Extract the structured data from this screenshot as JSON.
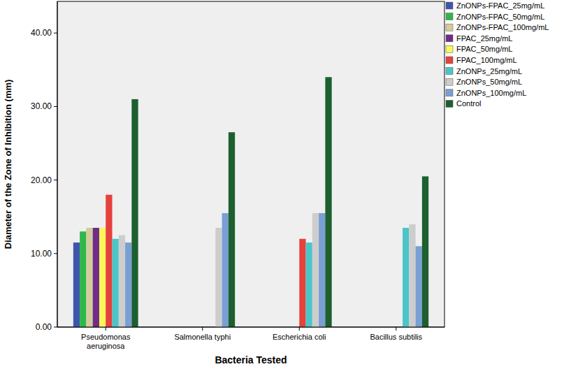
{
  "chart_data": {
    "type": "bar",
    "x_label": "Bacteria Tested",
    "y_label": "Diameter of the Zone of Inhibition (mm)",
    "categories": [
      "Pseudomonas aeruginosa",
      "Salmonella typhi",
      "Escherichia coli",
      "Bacillus subtilis"
    ],
    "series": [
      {
        "name": "ZnONPs-FPAC_25mg/mL",
        "color": "#3d56ab",
        "values": [
          11.5,
          0,
          0,
          0
        ]
      },
      {
        "name": "ZnONPs-FPAC_50mg/mL",
        "color": "#2fb74a",
        "values": [
          13,
          0,
          0,
          0
        ]
      },
      {
        "name": "ZnONPs-FPAC_100mg/mL",
        "color": "#d2cc9c",
        "values": [
          13.5,
          0,
          0,
          0
        ]
      },
      {
        "name": "FPAC_25mg/mL",
        "color": "#702c86",
        "values": [
          13.5,
          0,
          0,
          0
        ]
      },
      {
        "name": "FPAC_50mg/mL",
        "color": "#fbf65a",
        "values": [
          13.5,
          0,
          0,
          0
        ]
      },
      {
        "name": "FPAC_100mg/mL",
        "color": "#e6413c",
        "values": [
          18,
          0,
          12,
          0
        ]
      },
      {
        "name": "ZnONPs_25mg/mL",
        "color": "#4bc5c8",
        "values": [
          12,
          0,
          11.5,
          13.5
        ]
      },
      {
        "name": "ZnONPs_50mg/mL",
        "color": "#cdcdcd",
        "values": [
          12.5,
          13.5,
          15.5,
          14
        ]
      },
      {
        "name": "ZnONPs_100mg/mL",
        "color": "#7a9fd4",
        "values": [
          11.5,
          15.5,
          15.5,
          11
        ]
      },
      {
        "name": "Control",
        "color": "#1d5f2e",
        "values": [
          31,
          26.5,
          34,
          20.5
        ]
      }
    ],
    "ylim": [
      0,
      44.3
    ],
    "yticks": [
      {
        "value": 0,
        "label": "0.00"
      },
      {
        "value": 10,
        "label": "10.00"
      },
      {
        "value": 20,
        "label": "20.00"
      },
      {
        "value": 30,
        "label": "30.00"
      },
      {
        "value": 40,
        "label": "40.00"
      }
    ],
    "grid": false,
    "legend": "right"
  }
}
